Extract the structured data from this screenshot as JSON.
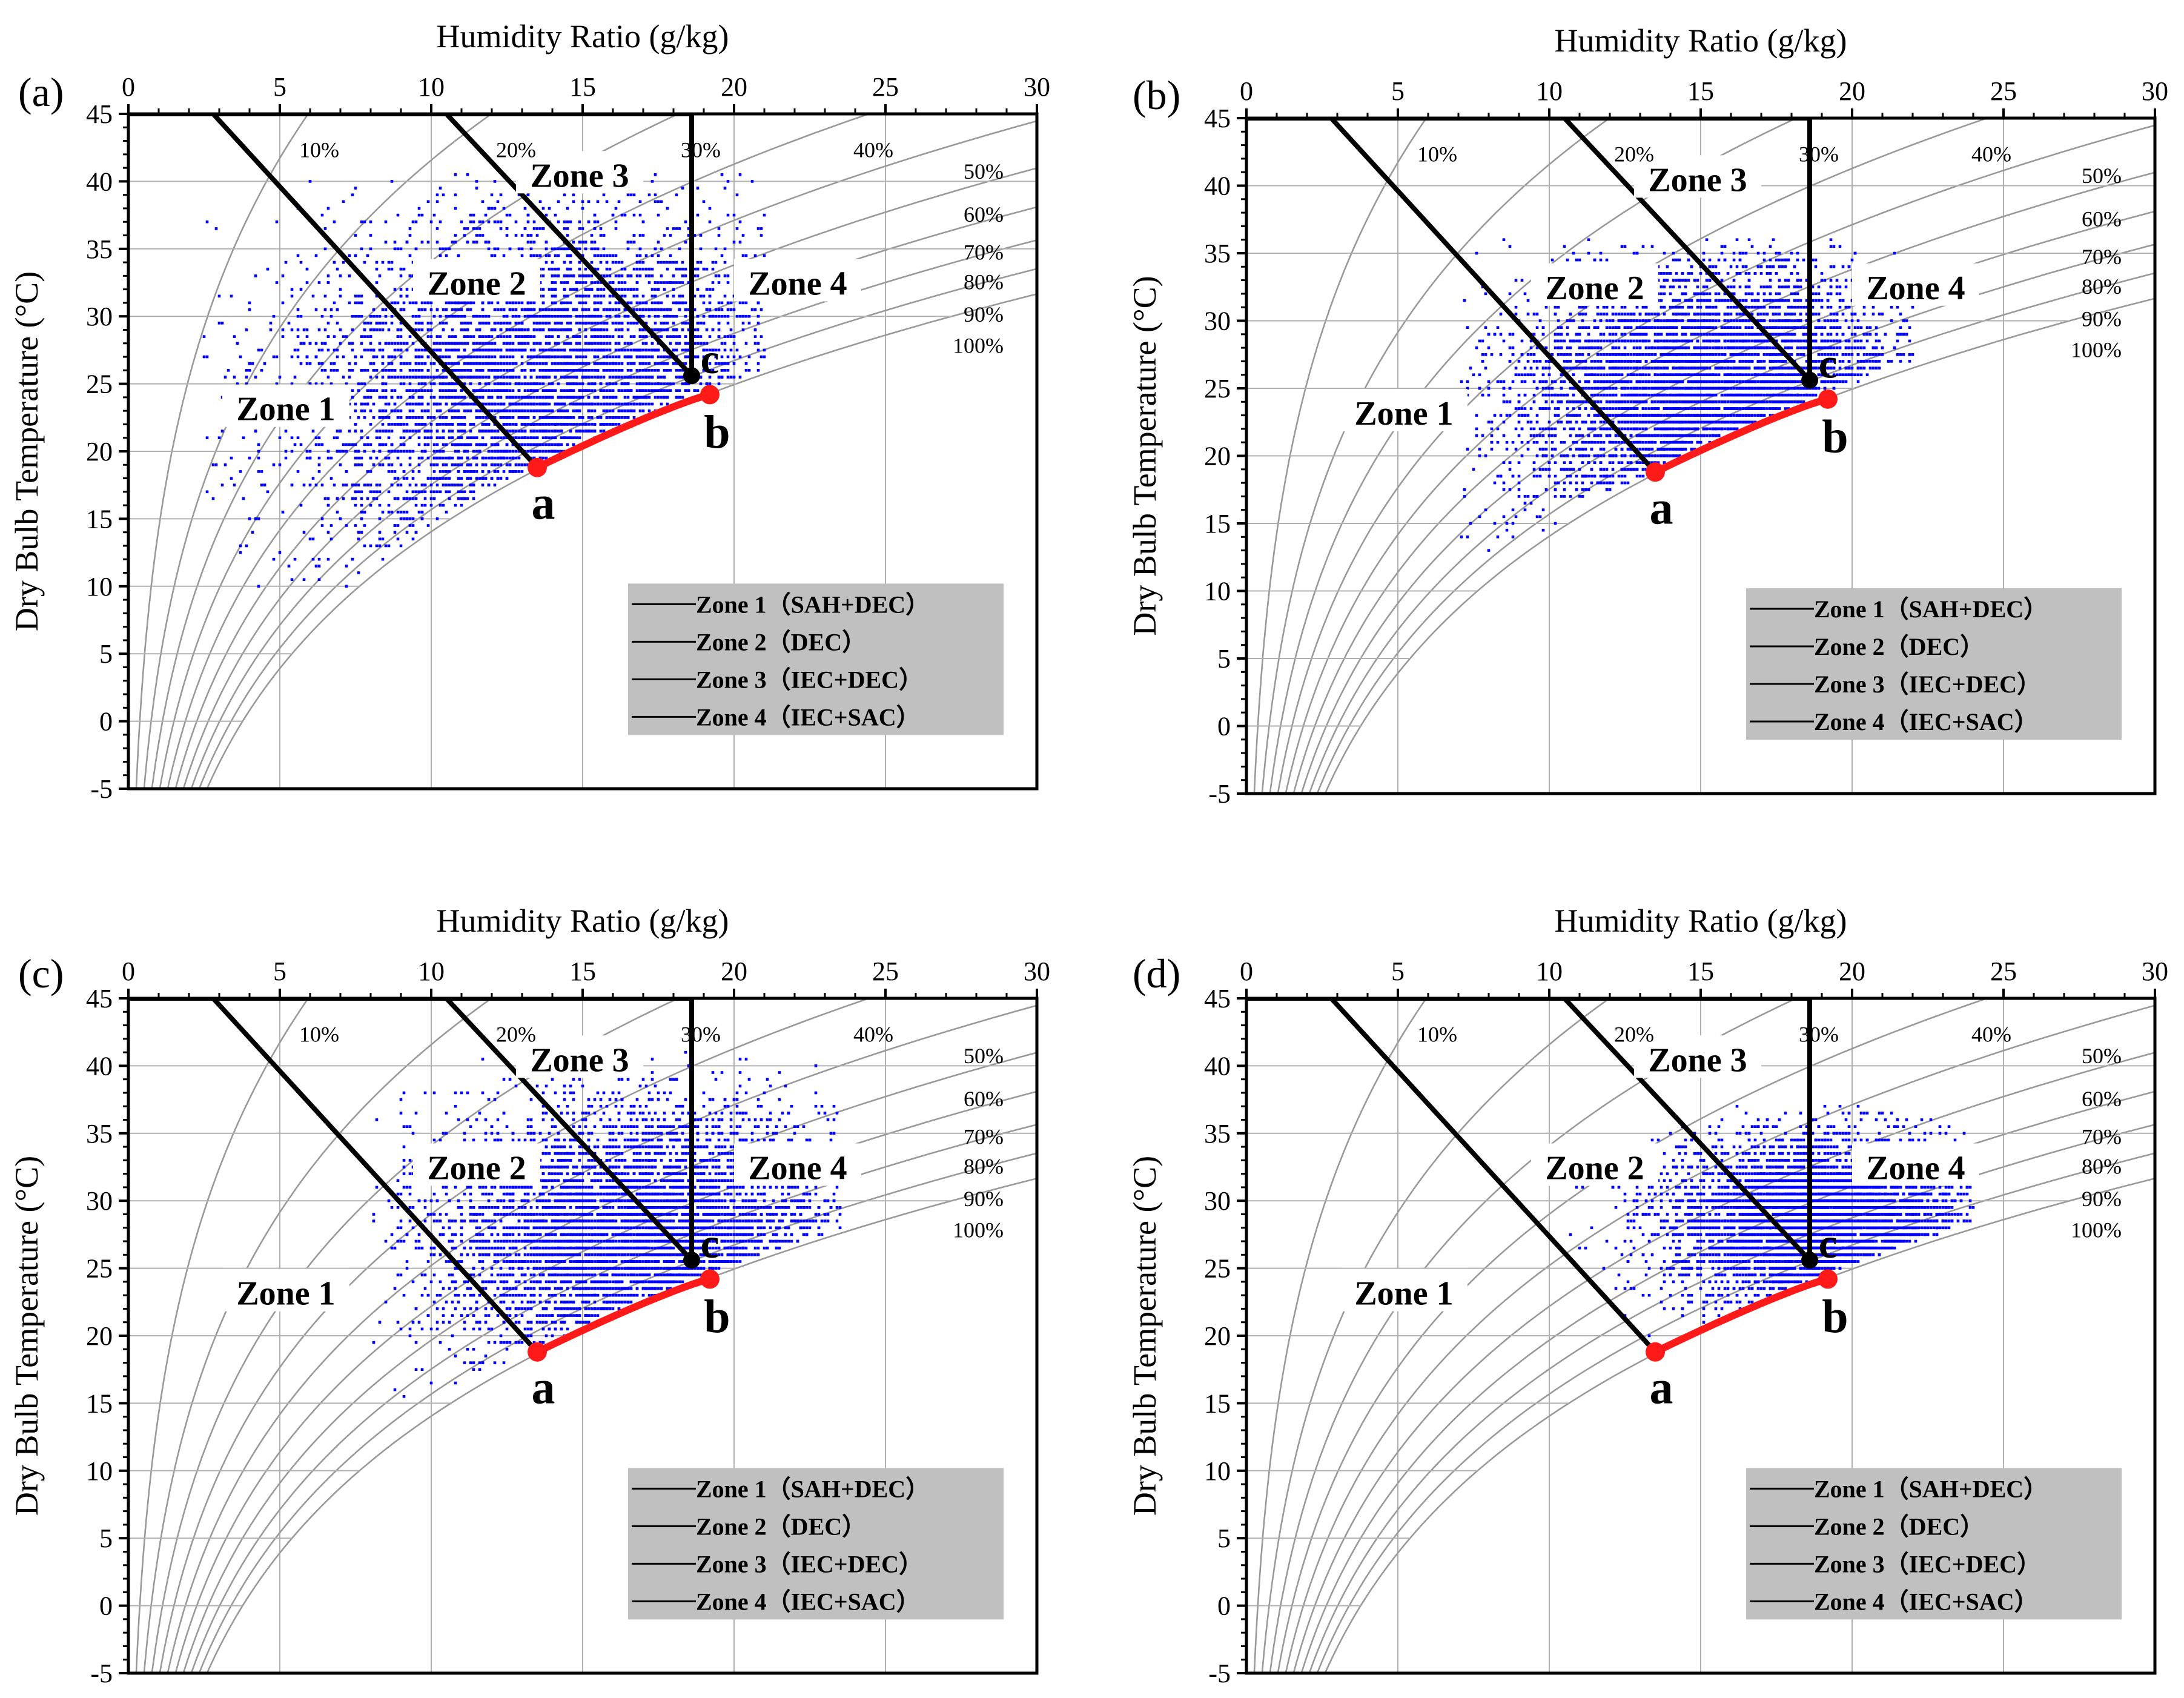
{
  "colors": {
    "scatter": "#0000ff",
    "process_line": "#ff1a1a",
    "zone_boundary": "#000000",
    "rh_curve": "#999999",
    "grid": "#b0b0b0",
    "legend_bg": "#c0c0c0"
  },
  "chart_data": [
    {
      "panel_label": "(a)",
      "type": "scatter",
      "xlabel": "Humidity Ratio (g/kg)",
      "ylabel": "Dry Bulb Temperature (°C)",
      "xlim": [
        0,
        30
      ],
      "ylim": [
        -5,
        45
      ],
      "x_ticks": [
        "0",
        "5",
        "10",
        "15",
        "20",
        "25",
        "30"
      ],
      "y_ticks": [
        "-5",
        "0",
        "5",
        "10",
        "15",
        "20",
        "25",
        "30",
        "35",
        "40",
        "45"
      ],
      "x_axis_position": "top",
      "grid": true,
      "rh_labels": [
        "10%",
        "20%",
        "30%",
        "40%",
        "50%",
        "60%",
        "70%",
        "80%",
        "90%",
        "100%"
      ],
      "zones": [
        "Zone 1",
        "Zone 2",
        "Zone 3",
        "Zone 4"
      ],
      "points": {
        "a": {
          "x": 13.5,
          "y": 18.8
        },
        "b": {
          "x": 19.2,
          "y": 24.2
        },
        "c": {
          "x": 18.6,
          "y": 25.6
        }
      },
      "point_labels": [
        "a",
        "b",
        "c"
      ],
      "legend": [
        "Zone 1（SAH+DEC）",
        "Zone 2（DEC）",
        "Zone 3（IEC+DEC）",
        "Zone 4（IEC+SAC）"
      ],
      "legend_position": "bottom-right",
      "scatter": {
        "center_x": 14.0,
        "center_y": 24.0,
        "spread_x": 4.2,
        "spread_y": 6.5,
        "x_range": [
          2.5,
          21
        ],
        "y_range": [
          9,
          41
        ],
        "density": "high",
        "wide_spread": true
      }
    },
    {
      "panel_label": "(b)",
      "type": "scatter",
      "xlabel": "Humidity Ratio (g/kg)",
      "ylabel": "Dry Bulb Temperature (°C)",
      "xlim": [
        0,
        30
      ],
      "ylim": [
        -5,
        45
      ],
      "x_ticks": [
        "0",
        "5",
        "10",
        "15",
        "20",
        "25",
        "30"
      ],
      "y_ticks": [
        "-5",
        "0",
        "5",
        "10",
        "15",
        "20",
        "25",
        "30",
        "35",
        "40",
        "45"
      ],
      "x_axis_position": "top",
      "grid": true,
      "rh_labels": [
        "10%",
        "20%",
        "30%",
        "40%",
        "50%",
        "60%",
        "70%",
        "80%",
        "90%",
        "100%"
      ],
      "zones": [
        "Zone 1",
        "Zone 2",
        "Zone 3",
        "Zone 4"
      ],
      "points": {
        "a": {
          "x": 13.5,
          "y": 18.8
        },
        "b": {
          "x": 19.2,
          "y": 24.2
        },
        "c": {
          "x": 18.6,
          "y": 25.6
        }
      },
      "point_labels": [
        "a",
        "b",
        "c"
      ],
      "legend": [
        "Zone 1（SAH+DEC）",
        "Zone 2（DEC）",
        "Zone 3（IEC+DEC）",
        "Zone 4（IEC+SAC）"
      ],
      "legend_position": "bottom-right",
      "scatter": {
        "center_x": 15.5,
        "center_y": 24.5,
        "spread_x": 3.2,
        "spread_y": 4.8,
        "x_range": [
          7,
          22
        ],
        "y_range": [
          13,
          36
        ],
        "density": "high",
        "wide_spread": false
      }
    },
    {
      "panel_label": "(c)",
      "type": "scatter",
      "xlabel": "Humidity Ratio (g/kg)",
      "ylabel": "Dry Bulb Temperature (°C)",
      "xlim": [
        0,
        30
      ],
      "ylim": [
        -5,
        45
      ],
      "x_ticks": [
        "0",
        "5",
        "10",
        "15",
        "20",
        "25",
        "30"
      ],
      "y_ticks": [
        "-5",
        "0",
        "5",
        "10",
        "15",
        "20",
        "25",
        "30",
        "35",
        "40",
        "45"
      ],
      "x_axis_position": "top",
      "grid": true,
      "rh_labels": [
        "10%",
        "20%",
        "30%",
        "40%",
        "50%",
        "60%",
        "70%",
        "80%",
        "90%",
        "100%"
      ],
      "zones": [
        "Zone 1",
        "Zone 2",
        "Zone 3",
        "Zone 4"
      ],
      "points": {
        "a": {
          "x": 13.5,
          "y": 18.8
        },
        "b": {
          "x": 19.2,
          "y": 24.2
        },
        "c": {
          "x": 18.6,
          "y": 25.6
        }
      },
      "point_labels": [
        "a",
        "b",
        "c"
      ],
      "legend": [
        "Zone 1（SAH+DEC）",
        "Zone 2（DEC）",
        "Zone 3（IEC+DEC）",
        "Zone 4（IEC+SAC）"
      ],
      "legend_position": "bottom-right",
      "scatter": {
        "center_x": 17.0,
        "center_y": 27.0,
        "spread_x": 3.3,
        "spread_y": 5.0,
        "x_range": [
          8,
          23.5
        ],
        "y_range": [
          15,
          41
        ],
        "density": "high",
        "wide_spread": false
      }
    },
    {
      "panel_label": "(d)",
      "type": "scatter",
      "xlabel": "Humidity Ratio (g/kg)",
      "ylabel": "Dry Bulb Temperature (°C)",
      "xlim": [
        0,
        30
      ],
      "ylim": [
        -5,
        45
      ],
      "x_ticks": [
        "0",
        "5",
        "10",
        "15",
        "20",
        "25",
        "30"
      ],
      "y_ticks": [
        "-5",
        "0",
        "5",
        "10",
        "15",
        "20",
        "25",
        "30",
        "35",
        "40",
        "45"
      ],
      "x_axis_position": "top",
      "grid": true,
      "rh_labels": [
        "10%",
        "20%",
        "30%",
        "40%",
        "50%",
        "60%",
        "70%",
        "80%",
        "90%",
        "100%"
      ],
      "zones": [
        "Zone 1",
        "Zone 2",
        "Zone 3",
        "Zone 4"
      ],
      "points": {
        "a": {
          "x": 13.5,
          "y": 18.8
        },
        "b": {
          "x": 19.2,
          "y": 24.2
        },
        "c": {
          "x": 18.6,
          "y": 25.6
        }
      },
      "point_labels": [
        "a",
        "b",
        "c"
      ],
      "legend": [
        "Zone 1（SAH+DEC）",
        "Zone 2（DEC）",
        "Zone 3（IEC+DEC）",
        "Zone 4（IEC+SAC）"
      ],
      "legend_position": "bottom-right",
      "scatter": {
        "center_x": 19.0,
        "center_y": 28.0,
        "spread_x": 2.4,
        "spread_y": 3.2,
        "x_range": [
          10,
          24
        ],
        "y_range": [
          17,
          37
        ],
        "density": "high",
        "wide_spread": false
      }
    }
  ]
}
